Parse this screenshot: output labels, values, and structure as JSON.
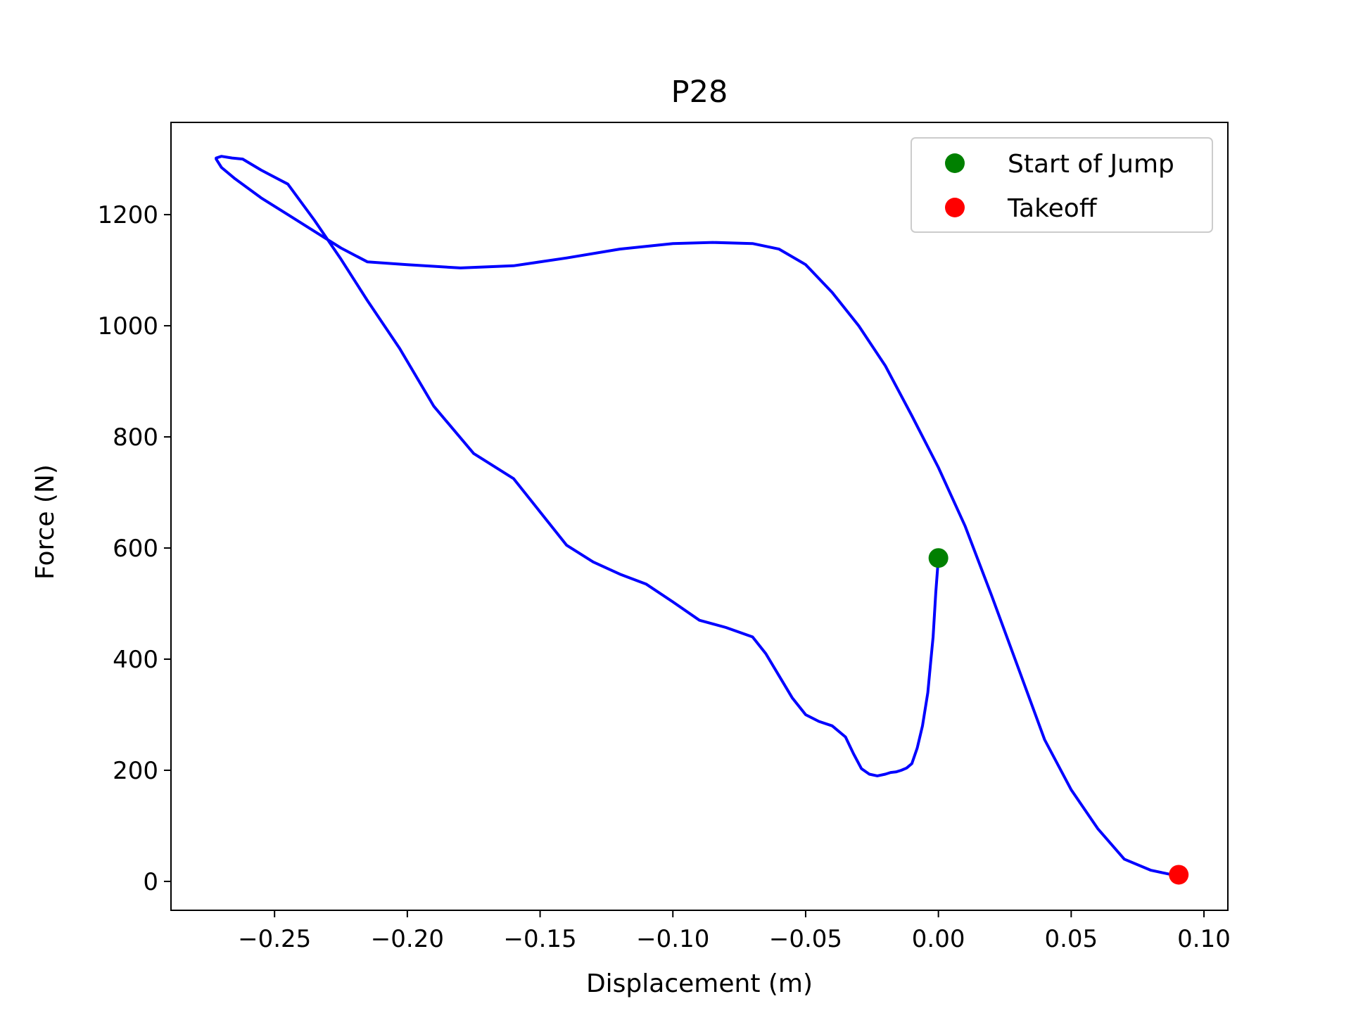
{
  "chart_data": {
    "type": "line",
    "title": "P28",
    "xlabel": "Displacement (m)",
    "ylabel": "Force (N)",
    "xlim": [
      -0.289,
      0.109
    ],
    "ylim": [
      -52,
      1366
    ],
    "xticks": [
      -0.25,
      -0.2,
      -0.15,
      -0.1,
      -0.05,
      0.0,
      0.05,
      0.1
    ],
    "xtick_labels": [
      "−0.25",
      "−0.20",
      "−0.15",
      "−0.10",
      "−0.05",
      "0.00",
      "0.05",
      "0.10"
    ],
    "yticks": [
      0,
      200,
      400,
      600,
      800,
      1000,
      1200
    ],
    "ytick_labels": [
      "0",
      "200",
      "400",
      "600",
      "800",
      "1000",
      "1200"
    ],
    "grid": false,
    "legend_position": "top-right",
    "series": [
      {
        "color": "#0000ff",
        "x": [
          0.0,
          -0.001,
          -0.002,
          -0.003,
          -0.004,
          -0.006,
          -0.008,
          -0.01,
          -0.012,
          -0.014,
          -0.016,
          -0.018,
          -0.02,
          -0.023,
          -0.026,
          -0.029,
          -0.032,
          -0.035,
          -0.04,
          -0.045,
          -0.05,
          -0.055,
          -0.06,
          -0.065,
          -0.07,
          -0.08,
          -0.09,
          -0.1,
          -0.11,
          -0.12,
          -0.13,
          -0.14,
          -0.15,
          -0.16,
          -0.175,
          -0.19,
          -0.203,
          -0.215,
          -0.225,
          -0.235,
          -0.245,
          -0.255,
          -0.262,
          -0.266,
          -0.27,
          -0.272,
          -0.272,
          -0.27,
          -0.265,
          -0.255,
          -0.245,
          -0.235,
          -0.225,
          -0.215,
          -0.2,
          -0.18,
          -0.16,
          -0.14,
          -0.12,
          -0.1,
          -0.085,
          -0.07,
          -0.06,
          -0.05,
          -0.04,
          -0.03,
          -0.02,
          -0.01,
          0.0,
          0.01,
          0.02,
          0.03,
          0.04,
          0.05,
          0.06,
          0.07,
          0.08,
          0.085,
          0.088,
          0.09
        ],
        "y": [
          582,
          520,
          440,
          390,
          340,
          280,
          240,
          212,
          204,
          200,
          197,
          196,
          193,
          190,
          193,
          203,
          230,
          260,
          280,
          288,
          300,
          330,
          370,
          410,
          440,
          457,
          470,
          503,
          535,
          553,
          575,
          605,
          665,
          725,
          770,
          855,
          960,
          1045,
          1120,
          1190,
          1255,
          1280,
          1300,
          1302,
          1305,
          1302,
          1300,
          1285,
          1265,
          1230,
          1200,
          1170,
          1140,
          1115,
          1110,
          1104,
          1108,
          1122,
          1138,
          1148,
          1150,
          1148,
          1138,
          1110,
          1060,
          1000,
          928,
          838,
          745,
          640,
          515,
          385,
          255,
          165,
          95,
          40,
          20,
          15,
          12,
          12
        ]
      }
    ],
    "markers": [
      {
        "label": "Start of Jump",
        "x": 0.0,
        "y": 582,
        "color": "#008000"
      },
      {
        "label": "Takeoff",
        "x": 0.0905,
        "y": 12,
        "color": "#ff0000"
      }
    ]
  }
}
